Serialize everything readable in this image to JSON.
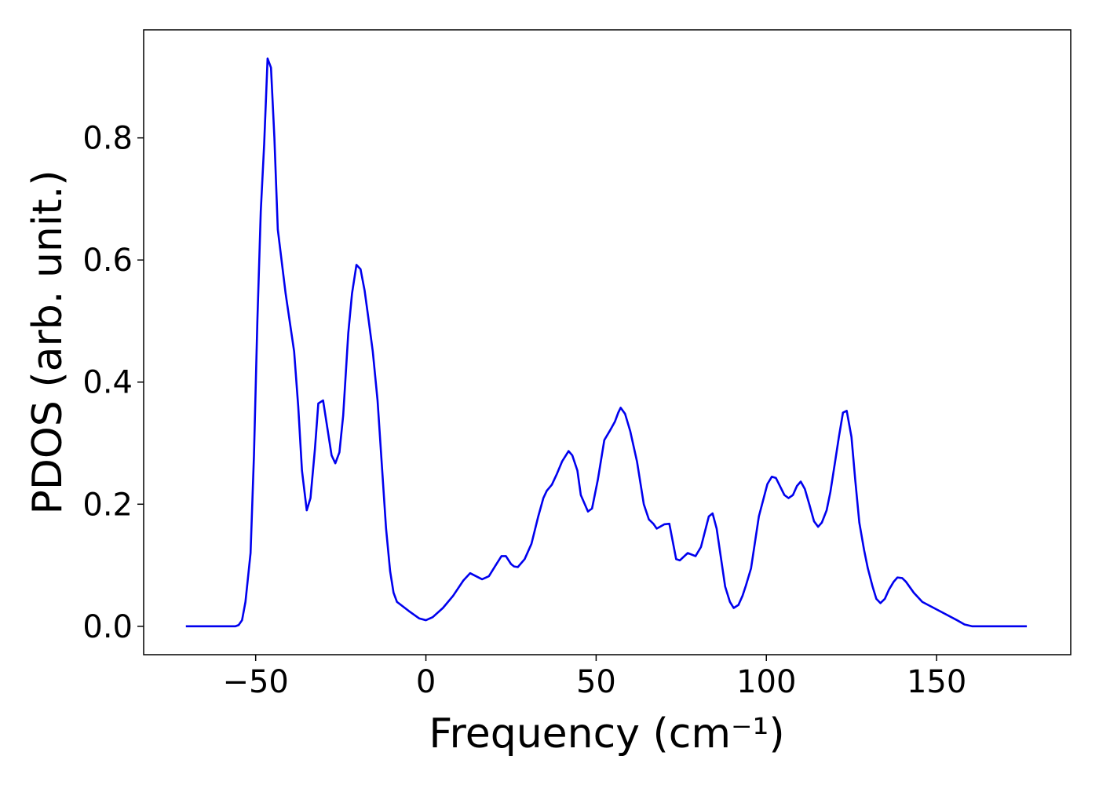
{
  "chart_data": {
    "type": "line",
    "xlabel": "Frequency (cm⁻¹)",
    "ylabel": "PDOS (arb. unit.)",
    "color": "#0000ee",
    "xlim": [
      -82.9,
      189.4
    ],
    "ylim": [
      -0.0465,
      0.977
    ],
    "xticks": [
      -50,
      0,
      50,
      100,
      150
    ],
    "yticks": [
      {
        "value": 0,
        "label": "0.0"
      },
      {
        "value": 0.2,
        "label": "0.2"
      },
      {
        "value": 0.4,
        "label": "0.4"
      },
      {
        "value": 0.6,
        "label": "0.6"
      },
      {
        "value": 0.8,
        "label": "0.8"
      }
    ],
    "x": [
      -70.5,
      -56,
      -55,
      -54,
      -53,
      -51.5,
      -50.5,
      -49.5,
      -48.5,
      -47.5,
      -46.5,
      -45.5,
      -44.5,
      -43.5,
      -41.2,
      -38.7,
      -37.5,
      -36.4,
      -35,
      -33.9,
      -32.6,
      -31.6,
      -30.2,
      -27.7,
      -26.6,
      -25.4,
      -24.3,
      -22.8,
      -21.7,
      -20.4,
      -19.2,
      -18,
      -16.9,
      -15.6,
      -14.2,
      -11.7,
      -10.5,
      -9.5,
      -8.5,
      -5,
      -2,
      0,
      2,
      5,
      8,
      11,
      13,
      16.5,
      18.5,
      20.5,
      22.2,
      23.5,
      25,
      25.9,
      27,
      29,
      31,
      33,
      34.5,
      35.5,
      37,
      38.5,
      40,
      41.9,
      43,
      44.5,
      45.5,
      47.6,
      48.8,
      50.5,
      52.4,
      54,
      55.5,
      56.5,
      57.2,
      58.5,
      60,
      62,
      64,
      65.5,
      66.8,
      67.8,
      70,
      71.5,
      73.5,
      74.6,
      76.9,
      79.2,
      80.8,
      83.1,
      84.2,
      85.4,
      87.9,
      89.3,
      90.4,
      91.8,
      93,
      94,
      95.5,
      97.8,
      100.3,
      101.6,
      102.8,
      105.3,
      106.5,
      107.8,
      109,
      110.1,
      111.3,
      112.6,
      114,
      115.2,
      116.3,
      117.7,
      118.8,
      120.2,
      121.3,
      122.5,
      123.6,
      125,
      126.1,
      127.3,
      128.7,
      129.8,
      131.2,
      132.3,
      133.5,
      134.8,
      136,
      137.4,
      138.5,
      139.9,
      141,
      143.3,
      145.8,
      150.9,
      156,
      158.2,
      160.5,
      176.5
    ],
    "values": [
      0,
      0,
      0.002,
      0.01,
      0.04,
      0.12,
      0.28,
      0.5,
      0.68,
      0.79,
      0.93,
      0.915,
      0.8,
      0.65,
      0.545,
      0.45,
      0.36,
      0.255,
      0.19,
      0.21,
      0.29,
      0.365,
      0.37,
      0.28,
      0.267,
      0.285,
      0.345,
      0.48,
      0.545,
      0.592,
      0.585,
      0.55,
      0.505,
      0.45,
      0.37,
      0.16,
      0.09,
      0.055,
      0.04,
      0.025,
      0.013,
      0.01,
      0.015,
      0.03,
      0.05,
      0.075,
      0.087,
      0.077,
      0.082,
      0.1,
      0.115,
      0.115,
      0.102,
      0.098,
      0.097,
      0.11,
      0.135,
      0.18,
      0.21,
      0.222,
      0.232,
      0.25,
      0.27,
      0.287,
      0.28,
      0.255,
      0.215,
      0.188,
      0.193,
      0.24,
      0.305,
      0.32,
      0.335,
      0.35,
      0.358,
      0.348,
      0.32,
      0.27,
      0.2,
      0.175,
      0.168,
      0.16,
      0.167,
      0.168,
      0.11,
      0.108,
      0.12,
      0.115,
      0.13,
      0.18,
      0.185,
      0.16,
      0.065,
      0.04,
      0.03,
      0.035,
      0.05,
      0.067,
      0.095,
      0.18,
      0.233,
      0.245,
      0.243,
      0.215,
      0.21,
      0.215,
      0.23,
      0.237,
      0.225,
      0.2,
      0.172,
      0.163,
      0.17,
      0.19,
      0.22,
      0.27,
      0.31,
      0.35,
      0.353,
      0.31,
      0.24,
      0.17,
      0.125,
      0.095,
      0.065,
      0.045,
      0.038,
      0.045,
      0.06,
      0.073,
      0.08,
      0.079,
      0.073,
      0.055,
      0.04,
      0.025,
      0.01,
      0.003,
      0,
      0
    ]
  }
}
